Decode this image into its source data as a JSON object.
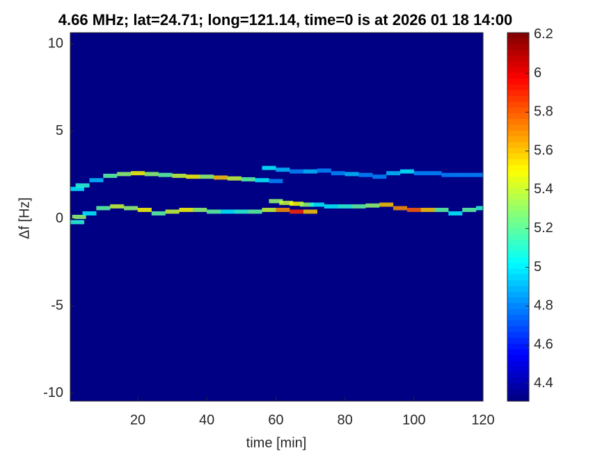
{
  "chart_data": {
    "type": "heatmap",
    "title": "4.66 MHz;  lat=24.71; long=121.14, time=0 is at 2026 01 18 14:00",
    "xlabel": "time [min]",
    "ylabel": "Δf [Hz]",
    "xlim": [
      0.45,
      120
    ],
    "xticks": [
      20,
      40,
      60,
      80,
      100,
      120
    ],
    "ylim": [
      -10.44,
      10.64
    ],
    "yticks": [
      -10,
      -5,
      0,
      5,
      10
    ],
    "clim": [
      4.31,
      6.21
    ],
    "cticks": [
      4.4,
      4.6,
      4.8,
      5,
      5.2,
      5.4,
      5.6,
      5.8,
      6,
      6.2
    ],
    "colormap": "jet",
    "background_value": 4.32,
    "traces": [
      {
        "x": [
          1,
          4,
          8,
          12,
          16,
          20,
          24,
          28,
          32,
          36,
          40,
          44,
          48,
          52,
          56,
          60
        ],
        "y": [
          1.7,
          1.9,
          2.2,
          2.45,
          2.55,
          2.6,
          2.55,
          2.5,
          2.45,
          2.4,
          2.4,
          2.35,
          2.3,
          2.25,
          2.2,
          2.15
        ],
        "values": [
          5.0,
          5.1,
          4.9,
          5.2,
          5.3,
          5.5,
          5.3,
          5.2,
          5.4,
          5.5,
          5.3,
          5.6,
          5.4,
          5.2,
          5.0,
          4.8
        ]
      },
      {
        "x": [
          58,
          62,
          66,
          70,
          74,
          78,
          82,
          86,
          90,
          94,
          98,
          102,
          106,
          110,
          114,
          118
        ],
        "y": [
          2.9,
          2.8,
          2.7,
          2.7,
          2.75,
          2.6,
          2.55,
          2.5,
          2.4,
          2.6,
          2.7,
          2.6,
          2.6,
          2.5,
          2.5,
          2.5
        ],
        "values": [
          5.0,
          4.9,
          4.8,
          4.9,
          4.8,
          4.8,
          4.9,
          4.8,
          4.8,
          4.9,
          5.0,
          4.8,
          4.8,
          4.8,
          4.8,
          4.8
        ]
      },
      {
        "x": [
          1,
          3,
          6,
          10,
          14,
          18,
          22,
          26,
          30,
          34,
          38,
          42,
          46,
          50,
          54,
          58,
          62,
          66,
          70
        ],
        "y": [
          -0.2,
          0.1,
          0.3,
          0.6,
          0.7,
          0.6,
          0.5,
          0.3,
          0.4,
          0.5,
          0.5,
          0.4,
          0.4,
          0.4,
          0.4,
          0.5,
          0.5,
          0.4,
          0.4
        ],
        "values": [
          5.1,
          5.3,
          5.0,
          5.2,
          5.4,
          5.3,
          5.5,
          5.2,
          5.4,
          5.5,
          5.3,
          5.2,
          5.0,
          5.1,
          5.2,
          5.4,
          5.7,
          5.9,
          5.6
        ]
      },
      {
        "x": [
          60,
          63,
          66,
          69,
          72
        ],
        "y": [
          1.0,
          0.9,
          0.85,
          0.8,
          0.8
        ],
        "values": [
          5.3,
          5.4,
          5.5,
          5.3,
          5.0
        ]
      },
      {
        "x": [
          76,
          80,
          84,
          88,
          92,
          96,
          100,
          104,
          108
        ],
        "y": [
          0.7,
          0.7,
          0.7,
          0.75,
          0.8,
          0.6,
          0.5,
          0.5,
          0.5
        ],
        "values": [
          5.0,
          5.1,
          5.2,
          5.3,
          5.6,
          5.7,
          5.8,
          5.6,
          5.2
        ]
      },
      {
        "x": [
          112,
          116,
          120
        ],
        "y": [
          0.3,
          0.5,
          0.6
        ],
        "values": [
          5.0,
          5.2,
          5.1
        ]
      }
    ]
  }
}
